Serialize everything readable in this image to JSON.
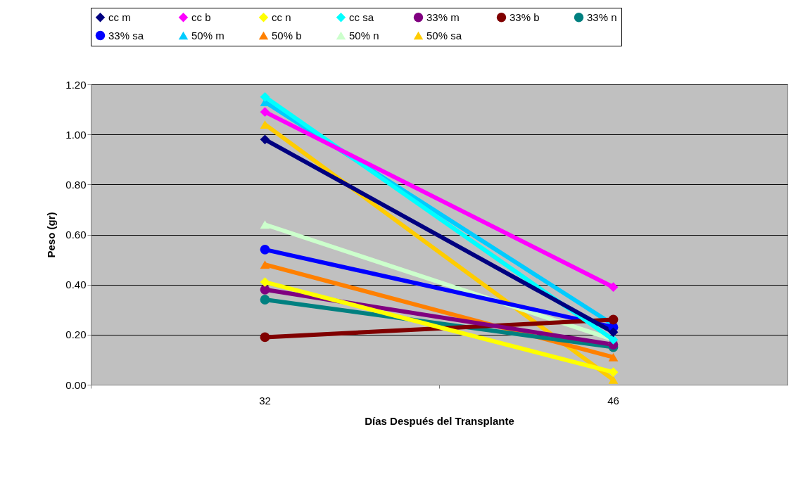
{
  "chart_data": {
    "type": "line",
    "xlabel": "Días Después del Transplante",
    "ylabel": "Peso (gr)",
    "categories": [
      "32",
      "46"
    ],
    "ylim": [
      0,
      1.2
    ],
    "yticks": [
      {
        "value": 0,
        "label": "0.00"
      },
      {
        "value": 0.2,
        "label": "0.20"
      },
      {
        "value": 0.4,
        "label": "0.40"
      },
      {
        "value": 0.6,
        "label": "0.60"
      },
      {
        "value": 0.8,
        "label": "0.80"
      },
      {
        "value": 1.0,
        "label": "1.00"
      },
      {
        "value": 1.2,
        "label": "1.20"
      }
    ],
    "grid": "y",
    "legend": "top",
    "line_style": "solid",
    "series": [
      {
        "name": "cc m",
        "color": "#000080",
        "marker": "diamond",
        "values": [
          0.98,
          0.21
        ]
      },
      {
        "name": "cc b",
        "color": "#ff00ff",
        "marker": "diamond",
        "values": [
          1.09,
          0.39
        ]
      },
      {
        "name": "cc n",
        "color": "#ffff00",
        "marker": "diamond",
        "values": [
          0.41,
          0.05
        ]
      },
      {
        "name": "cc sa",
        "color": "#00ffff",
        "marker": "diamond",
        "values": [
          1.15,
          0.18
        ]
      },
      {
        "name": "33% m",
        "color": "#800080",
        "marker": "circle",
        "values": [
          0.38,
          0.16
        ]
      },
      {
        "name": "33% b",
        "color": "#800000",
        "marker": "circle",
        "values": [
          0.19,
          0.26
        ]
      },
      {
        "name": "33% n",
        "color": "#008080",
        "marker": "circle",
        "values": [
          0.34,
          0.15
        ]
      },
      {
        "name": "33% sa",
        "color": "#0000ff",
        "marker": "circle",
        "values": [
          0.54,
          0.23
        ]
      },
      {
        "name": "50% m",
        "color": "#00ccff",
        "marker": "triangle",
        "values": [
          1.13,
          0.24
        ]
      },
      {
        "name": "50% b",
        "color": "#ff8000",
        "marker": "triangle",
        "values": [
          0.48,
          0.11
        ]
      },
      {
        "name": "50% n",
        "color": "#ccffcc",
        "marker": "triangle",
        "values": [
          0.64,
          0.18
        ]
      },
      {
        "name": "50% sa",
        "color": "#ffcc00",
        "marker": "triangle",
        "values": [
          1.04,
          0.02
        ]
      }
    ]
  }
}
